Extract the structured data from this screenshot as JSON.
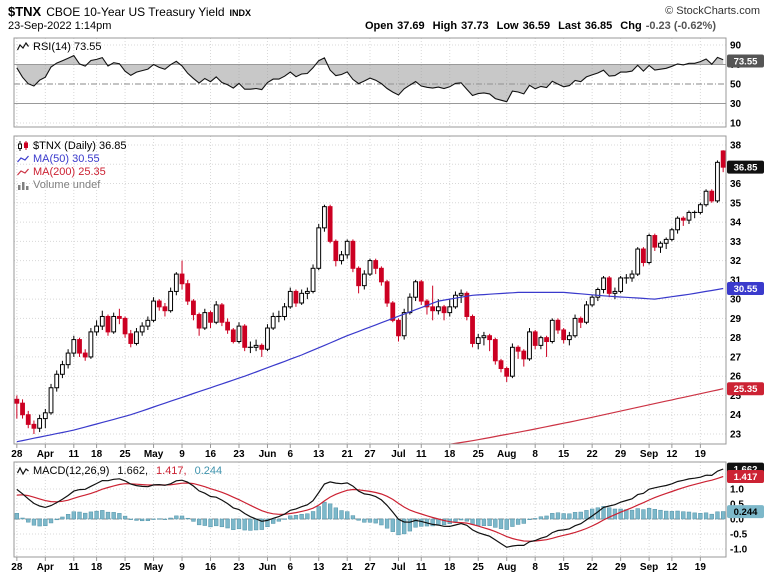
{
  "header": {
    "symbol": "$TNX",
    "name": "CBOE 10-Year US Treasury Yield",
    "exchange": "INDX",
    "datetime": "23-Sep-2022 1:14pm",
    "copyright": "© StockCharts.com",
    "quote": {
      "open_label": "Open",
      "open": "37.69",
      "high_label": "High",
      "high": "37.73",
      "low_label": "Low",
      "low": "36.59",
      "last_label": "Last",
      "last": "36.85",
      "chg_label": "Chg",
      "chg": "-0.23 (-0.62%)"
    }
  },
  "legends": {
    "rsi": "RSI(14) 73.55",
    "price": "$TNX (Daily) 36.85",
    "ma50": "MA(50) 30.55",
    "ma200": "MA(200) 25.35",
    "volume": "Volume undef",
    "macd": "MACD(12,26,9)",
    "macd_value": "1.662,",
    "signal_value": "1.417,",
    "hist_value": "0.244"
  },
  "colors": {
    "up": "#000000",
    "up_fill": "#ffffff",
    "down": "#cc0022",
    "ma50": "#3a3acc",
    "ma200": "#cc3344",
    "rsi_line": "#111111",
    "rsi_fill": "#9a9a9a",
    "macd_line": "#111111",
    "signal_line": "#cc2233",
    "hist_fill": "#7db8ca",
    "hist_stroke": "#4f92a8",
    "grid": "#d8d8d8",
    "frame": "#999999",
    "axis_text": "#000000",
    "badge_rsi": "#555555",
    "badge_close": "#111111",
    "badge_ma50": "#3a3acc",
    "badge_ma200": "#cc2233",
    "badge_macd": "#111111",
    "badge_signal": "#cc2233",
    "badge_hist": "#7db8ca"
  },
  "chart_data": {
    "type": "candlestick",
    "title": "$TNX CBOE 10-Year US Treasury Yield (Daily)",
    "grid": true,
    "legend_position": "top-left",
    "price_ylim": [
      23,
      38
    ],
    "rsi_ylim": [
      10,
      90
    ],
    "macd_ylim": [
      -1.0,
      1.5
    ],
    "rsi_levels": {
      "upper": 70,
      "mid": 50,
      "lower": 30
    },
    "price_axis": [
      38,
      37,
      36,
      35,
      34,
      33,
      32,
      31,
      30,
      29,
      28,
      27,
      26,
      25,
      24,
      23
    ],
    "rsi_axis": [
      90,
      70,
      50,
      30,
      10
    ],
    "macd_axis": [
      "1.5",
      "1.0",
      "0.5",
      "0.0",
      "-0.5",
      "-1.0"
    ],
    "x_ticks": [
      [
        0,
        "28"
      ],
      [
        5,
        "Apr"
      ],
      [
        10,
        "11"
      ],
      [
        14,
        "18"
      ],
      [
        19,
        "25"
      ],
      [
        24,
        "May"
      ],
      [
        29,
        "9"
      ],
      [
        34,
        "16"
      ],
      [
        39,
        "23"
      ],
      [
        44,
        "Jun"
      ],
      [
        48,
        "6"
      ],
      [
        53,
        "13"
      ],
      [
        58,
        "21"
      ],
      [
        62,
        "27"
      ],
      [
        67,
        "Jul"
      ],
      [
        71,
        "11"
      ],
      [
        76,
        "18"
      ],
      [
        81,
        "25"
      ],
      [
        86,
        "Aug"
      ],
      [
        91,
        "8"
      ],
      [
        96,
        "15"
      ],
      [
        101,
        "22"
      ],
      [
        106,
        "29"
      ],
      [
        111,
        "Sep"
      ],
      [
        115,
        "12"
      ],
      [
        120,
        "19"
      ]
    ],
    "candles": [
      [
        24.8,
        25.0,
        23.8,
        24.6
      ],
      [
        24.6,
        24.8,
        23.8,
        24.0
      ],
      [
        24.0,
        24.2,
        23.3,
        23.5
      ],
      [
        23.5,
        23.7,
        23.0,
        23.3
      ],
      [
        23.3,
        24.0,
        23.1,
        23.8
      ],
      [
        23.8,
        24.3,
        23.3,
        24.1
      ],
      [
        24.1,
        25.6,
        24.0,
        25.4
      ],
      [
        25.4,
        26.3,
        25.2,
        26.1
      ],
      [
        26.1,
        26.8,
        25.9,
        26.6
      ],
      [
        26.6,
        27.4,
        26.4,
        27.2
      ],
      [
        27.2,
        28.1,
        27.0,
        27.9
      ],
      [
        27.9,
        28.0,
        27.0,
        27.2
      ],
      [
        27.2,
        27.4,
        26.8,
        27.0
      ],
      [
        27.0,
        28.5,
        26.9,
        28.3
      ],
      [
        28.3,
        28.9,
        28.1,
        28.6
      ],
      [
        28.6,
        29.4,
        28.4,
        29.1
      ],
      [
        29.1,
        29.2,
        28.1,
        28.3
      ],
      [
        28.3,
        29.3,
        28.2,
        29.1
      ],
      [
        29.1,
        29.5,
        28.7,
        29.0
      ],
      [
        29.0,
        29.1,
        28.0,
        28.2
      ],
      [
        28.2,
        28.4,
        27.5,
        27.7
      ],
      [
        27.7,
        28.5,
        27.6,
        28.3
      ],
      [
        28.3,
        28.8,
        28.1,
        28.6
      ],
      [
        28.6,
        29.1,
        28.4,
        28.9
      ],
      [
        28.9,
        30.1,
        28.8,
        29.9
      ],
      [
        29.9,
        30.0,
        29.4,
        29.6
      ],
      [
        29.6,
        29.8,
        29.1,
        29.4
      ],
      [
        29.4,
        30.6,
        29.3,
        30.4
      ],
      [
        30.4,
        31.4,
        30.2,
        31.3
      ],
      [
        31.3,
        32.0,
        30.5,
        30.8
      ],
      [
        30.8,
        31.0,
        29.7,
        29.9
      ],
      [
        29.9,
        30.0,
        28.9,
        29.2
      ],
      [
        29.2,
        29.3,
        28.1,
        28.5
      ],
      [
        28.5,
        29.5,
        28.4,
        29.3
      ],
      [
        29.3,
        29.4,
        28.5,
        28.8
      ],
      [
        28.8,
        29.9,
        28.7,
        29.7
      ],
      [
        29.7,
        29.8,
        28.6,
        28.8
      ],
      [
        28.8,
        29.0,
        28.2,
        28.4
      ],
      [
        28.4,
        28.5,
        27.7,
        27.8
      ],
      [
        27.8,
        28.8,
        27.7,
        28.6
      ],
      [
        28.6,
        28.7,
        27.3,
        27.5
      ],
      [
        27.5,
        27.8,
        27.2,
        27.5
      ],
      [
        27.5,
        27.9,
        27.3,
        27.6
      ],
      [
        27.6,
        27.7,
        27.0,
        27.4
      ],
      [
        27.4,
        28.7,
        27.3,
        28.5
      ],
      [
        28.5,
        29.3,
        28.4,
        29.1
      ],
      [
        29.1,
        29.4,
        28.8,
        29.1
      ],
      [
        29.1,
        29.8,
        28.9,
        29.6
      ],
      [
        29.6,
        30.6,
        29.5,
        30.4
      ],
      [
        30.4,
        30.5,
        29.6,
        29.8
      ],
      [
        29.8,
        30.5,
        29.7,
        30.3
      ],
      [
        30.3,
        30.6,
        30.0,
        30.4
      ],
      [
        30.4,
        31.8,
        30.3,
        31.6
      ],
      [
        31.6,
        33.9,
        31.5,
        33.7
      ],
      [
        33.7,
        34.9,
        33.5,
        34.8
      ],
      [
        34.8,
        34.9,
        32.9,
        33.0
      ],
      [
        33.0,
        33.1,
        31.7,
        32.0
      ],
      [
        32.0,
        32.5,
        31.8,
        32.3
      ],
      [
        32.3,
        33.1,
        32.1,
        33.0
      ],
      [
        33.0,
        33.1,
        31.4,
        31.6
      ],
      [
        31.6,
        31.7,
        30.3,
        30.7
      ],
      [
        30.7,
        31.5,
        30.5,
        31.3
      ],
      [
        31.3,
        32.1,
        31.2,
        32.0
      ],
      [
        32.0,
        32.1,
        31.3,
        31.6
      ],
      [
        31.6,
        31.7,
        30.7,
        30.9
      ],
      [
        30.9,
        31.0,
        29.6,
        29.8
      ],
      [
        29.8,
        29.9,
        28.8,
        28.9
      ],
      [
        28.9,
        29.0,
        27.8,
        28.1
      ],
      [
        28.1,
        29.5,
        27.9,
        29.3
      ],
      [
        29.3,
        30.3,
        29.2,
        30.1
      ],
      [
        30.1,
        31.0,
        29.9,
        30.9
      ],
      [
        30.9,
        31.0,
        29.7,
        29.9
      ],
      [
        29.9,
        30.0,
        29.2,
        29.6
      ],
      [
        29.6,
        30.7,
        28.9,
        29.4
      ],
      [
        29.4,
        30.0,
        29.2,
        29.6
      ],
      [
        29.6,
        29.7,
        28.9,
        29.3
      ],
      [
        29.3,
        30.0,
        29.1,
        29.6
      ],
      [
        29.6,
        30.4,
        29.5,
        30.2
      ],
      [
        30.2,
        30.5,
        29.8,
        30.3
      ],
      [
        30.3,
        30.4,
        28.9,
        29.1
      ],
      [
        29.1,
        29.2,
        27.5,
        27.7
      ],
      [
        27.7,
        28.2,
        27.4,
        28.0
      ],
      [
        28.0,
        28.3,
        27.6,
        28.1
      ],
      [
        28.1,
        28.2,
        27.3,
        27.9
      ],
      [
        27.9,
        28.0,
        26.6,
        26.8
      ],
      [
        26.8,
        26.9,
        26.2,
        26.4
      ],
      [
        26.4,
        26.5,
        25.7,
        26.0
      ],
      [
        26.0,
        27.7,
        25.9,
        27.5
      ],
      [
        27.5,
        27.6,
        26.9,
        27.3
      ],
      [
        27.3,
        27.4,
        26.5,
        26.9
      ],
      [
        26.9,
        28.5,
        26.8,
        28.3
      ],
      [
        28.3,
        28.4,
        27.4,
        27.6
      ],
      [
        27.6,
        28.1,
        27.4,
        28.0
      ],
      [
        28.0,
        28.1,
        27.0,
        27.8
      ],
      [
        27.8,
        29.0,
        27.7,
        28.9
      ],
      [
        28.9,
        29.0,
        28.2,
        28.4
      ],
      [
        28.4,
        28.5,
        27.7,
        27.9
      ],
      [
        27.9,
        28.3,
        27.6,
        28.1
      ],
      [
        28.1,
        29.2,
        28.0,
        29.0
      ],
      [
        29.0,
        29.1,
        28.5,
        28.8
      ],
      [
        28.8,
        29.9,
        28.7,
        29.7
      ],
      [
        29.7,
        30.2,
        29.6,
        30.1
      ],
      [
        30.1,
        30.6,
        29.9,
        30.5
      ],
      [
        30.5,
        31.2,
        30.3,
        31.1
      ],
      [
        31.1,
        31.2,
        30.1,
        30.3
      ],
      [
        30.3,
        30.6,
        30.0,
        30.4
      ],
      [
        30.4,
        31.2,
        30.3,
        31.1
      ],
      [
        31.1,
        31.3,
        30.8,
        31.1
      ],
      [
        31.1,
        31.5,
        30.9,
        31.3
      ],
      [
        31.3,
        32.7,
        31.2,
        32.6
      ],
      [
        32.6,
        32.7,
        31.7,
        31.9
      ],
      [
        31.9,
        33.4,
        31.8,
        33.3
      ],
      [
        33.3,
        33.4,
        32.5,
        32.7
      ],
      [
        32.7,
        33.0,
        32.4,
        32.9
      ],
      [
        32.9,
        33.2,
        32.6,
        33.1
      ],
      [
        33.1,
        33.7,
        33.0,
        33.6
      ],
      [
        33.6,
        34.3,
        33.4,
        34.2
      ],
      [
        34.2,
        34.3,
        33.8,
        34.1
      ],
      [
        34.1,
        34.6,
        33.9,
        34.5
      ],
      [
        34.5,
        34.6,
        34.2,
        34.5
      ],
      [
        34.5,
        35.0,
        34.4,
        34.9
      ],
      [
        34.9,
        35.7,
        34.8,
        35.6
      ],
      [
        35.6,
        35.7,
        35.0,
        35.1
      ],
      [
        35.1,
        37.2,
        35.0,
        37.1
      ],
      [
        37.69,
        37.73,
        36.59,
        36.85
      ]
    ],
    "ma50_anchors": [
      [
        0,
        22.6
      ],
      [
        10,
        23.2
      ],
      [
        20,
        24.0
      ],
      [
        30,
        25.0
      ],
      [
        40,
        26.0
      ],
      [
        50,
        27.1
      ],
      [
        58,
        28.1
      ],
      [
        66,
        29.0
      ],
      [
        74,
        29.9
      ],
      [
        80,
        30.2
      ],
      [
        88,
        30.35
      ],
      [
        96,
        30.35
      ],
      [
        104,
        30.15
      ],
      [
        112,
        30.0
      ],
      [
        118,
        30.25
      ],
      [
        124,
        30.55
      ]
    ],
    "ma200_anchors": [
      [
        60,
        21.8
      ],
      [
        70,
        22.2
      ],
      [
        80,
        22.65
      ],
      [
        90,
        23.2
      ],
      [
        100,
        23.8
      ],
      [
        110,
        24.45
      ],
      [
        117,
        24.9
      ],
      [
        124,
        25.35
      ]
    ],
    "rsi_seed": {
      "avg_gain": 0.18,
      "avg_loss": 0.09
    },
    "macd_seed": {
      "ema12": 25.0,
      "ema26": 23.9,
      "signal": 0.75
    },
    "badges": {
      "rsi": {
        "label": "73.55",
        "value": 73.55
      },
      "close": {
        "label": "36.85",
        "value": 36.85
      },
      "ma50": {
        "label": "30.55",
        "value": 30.55
      },
      "ma200": {
        "label": "25.35",
        "value": 25.35
      },
      "macd": {
        "label": "1.662",
        "value": 1.662
      },
      "signal": {
        "label": "1.417",
        "value": 1.417
      },
      "hist": {
        "label": "0.244",
        "value": 0.244
      }
    }
  }
}
